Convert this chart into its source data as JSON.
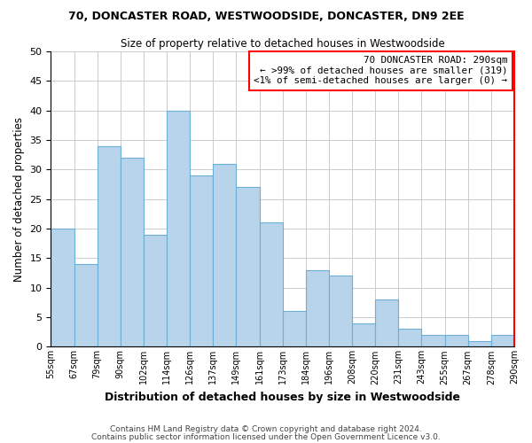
{
  "title": "70, DONCASTER ROAD, WESTWOODSIDE, DONCASTER, DN9 2EE",
  "subtitle": "Size of property relative to detached houses in Westwoodside",
  "xlabel": "Distribution of detached houses by size in Westwoodside",
  "ylabel": "Number of detached properties",
  "bar_labels": [
    "55sqm",
    "67sqm",
    "79sqm",
    "90sqm",
    "102sqm",
    "114sqm",
    "126sqm",
    "137sqm",
    "149sqm",
    "161sqm",
    "173sqm",
    "184sqm",
    "196sqm",
    "208sqm",
    "220sqm",
    "231sqm",
    "243sqm",
    "255sqm",
    "267sqm",
    "278sqm",
    "290sqm"
  ],
  "bar_values": [
    20,
    14,
    34,
    32,
    19,
    40,
    29,
    31,
    27,
    21,
    6,
    13,
    12,
    4,
    8,
    3,
    2,
    2,
    1,
    2
  ],
  "bar_color": "#b8d4ea",
  "bar_edge_color": "#6baed6",
  "ylim": [
    0,
    50
  ],
  "yticks": [
    0,
    5,
    10,
    15,
    20,
    25,
    30,
    35,
    40,
    45,
    50
  ],
  "annotation_title": "70 DONCASTER ROAD: 290sqm",
  "annotation_line1": "← >99% of detached houses are smaller (319)",
  "annotation_line2": "<1% of semi-detached houses are larger (0) →",
  "annotation_box_color": "#ff0000",
  "footer_line1": "Contains HM Land Registry data © Crown copyright and database right 2024.",
  "footer_line2": "Contains public sector information licensed under the Open Government Licence v3.0.",
  "background_color": "#ffffff",
  "grid_color": "#cccccc"
}
